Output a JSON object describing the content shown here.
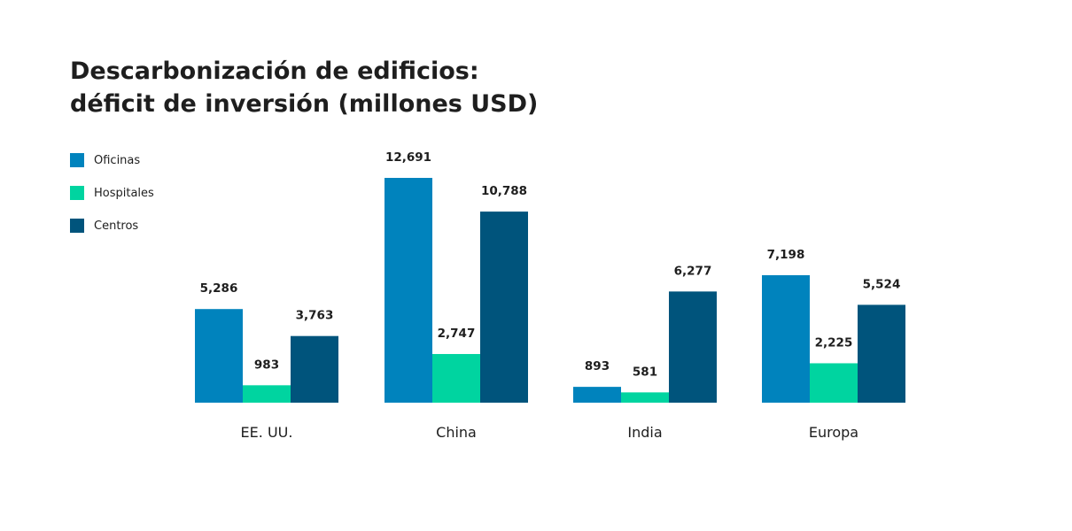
{
  "chart_data": {
    "type": "bar",
    "title": [
      "Descarbonización de edificios:",
      "déficit de inversión (millones USD)"
    ],
    "categories": [
      "EE. UU.",
      "China",
      "India",
      "Europa"
    ],
    "series": [
      {
        "name": "Oficinas",
        "color": "#0083bd",
        "values": [
          5286,
          12691,
          893,
          7198
        ],
        "labels": [
          "5,286",
          "12,691",
          "893",
          "7,198"
        ]
      },
      {
        "name": "Hospitales",
        "color": "#00d4a0",
        "values": [
          983,
          2747,
          581,
          2225
        ],
        "labels": [
          "983",
          "2,747",
          "581",
          "2,225"
        ]
      },
      {
        "name": "Centros",
        "color": "#00547c",
        "values": [
          3763,
          10788,
          6277,
          5524
        ],
        "labels": [
          "3,763",
          "10,788",
          "6,277",
          "5,524"
        ]
      }
    ],
    "xlabel": "",
    "ylabel": "",
    "ylim": [
      0,
      12691
    ],
    "grid": false,
    "legend_position": "top-left"
  }
}
